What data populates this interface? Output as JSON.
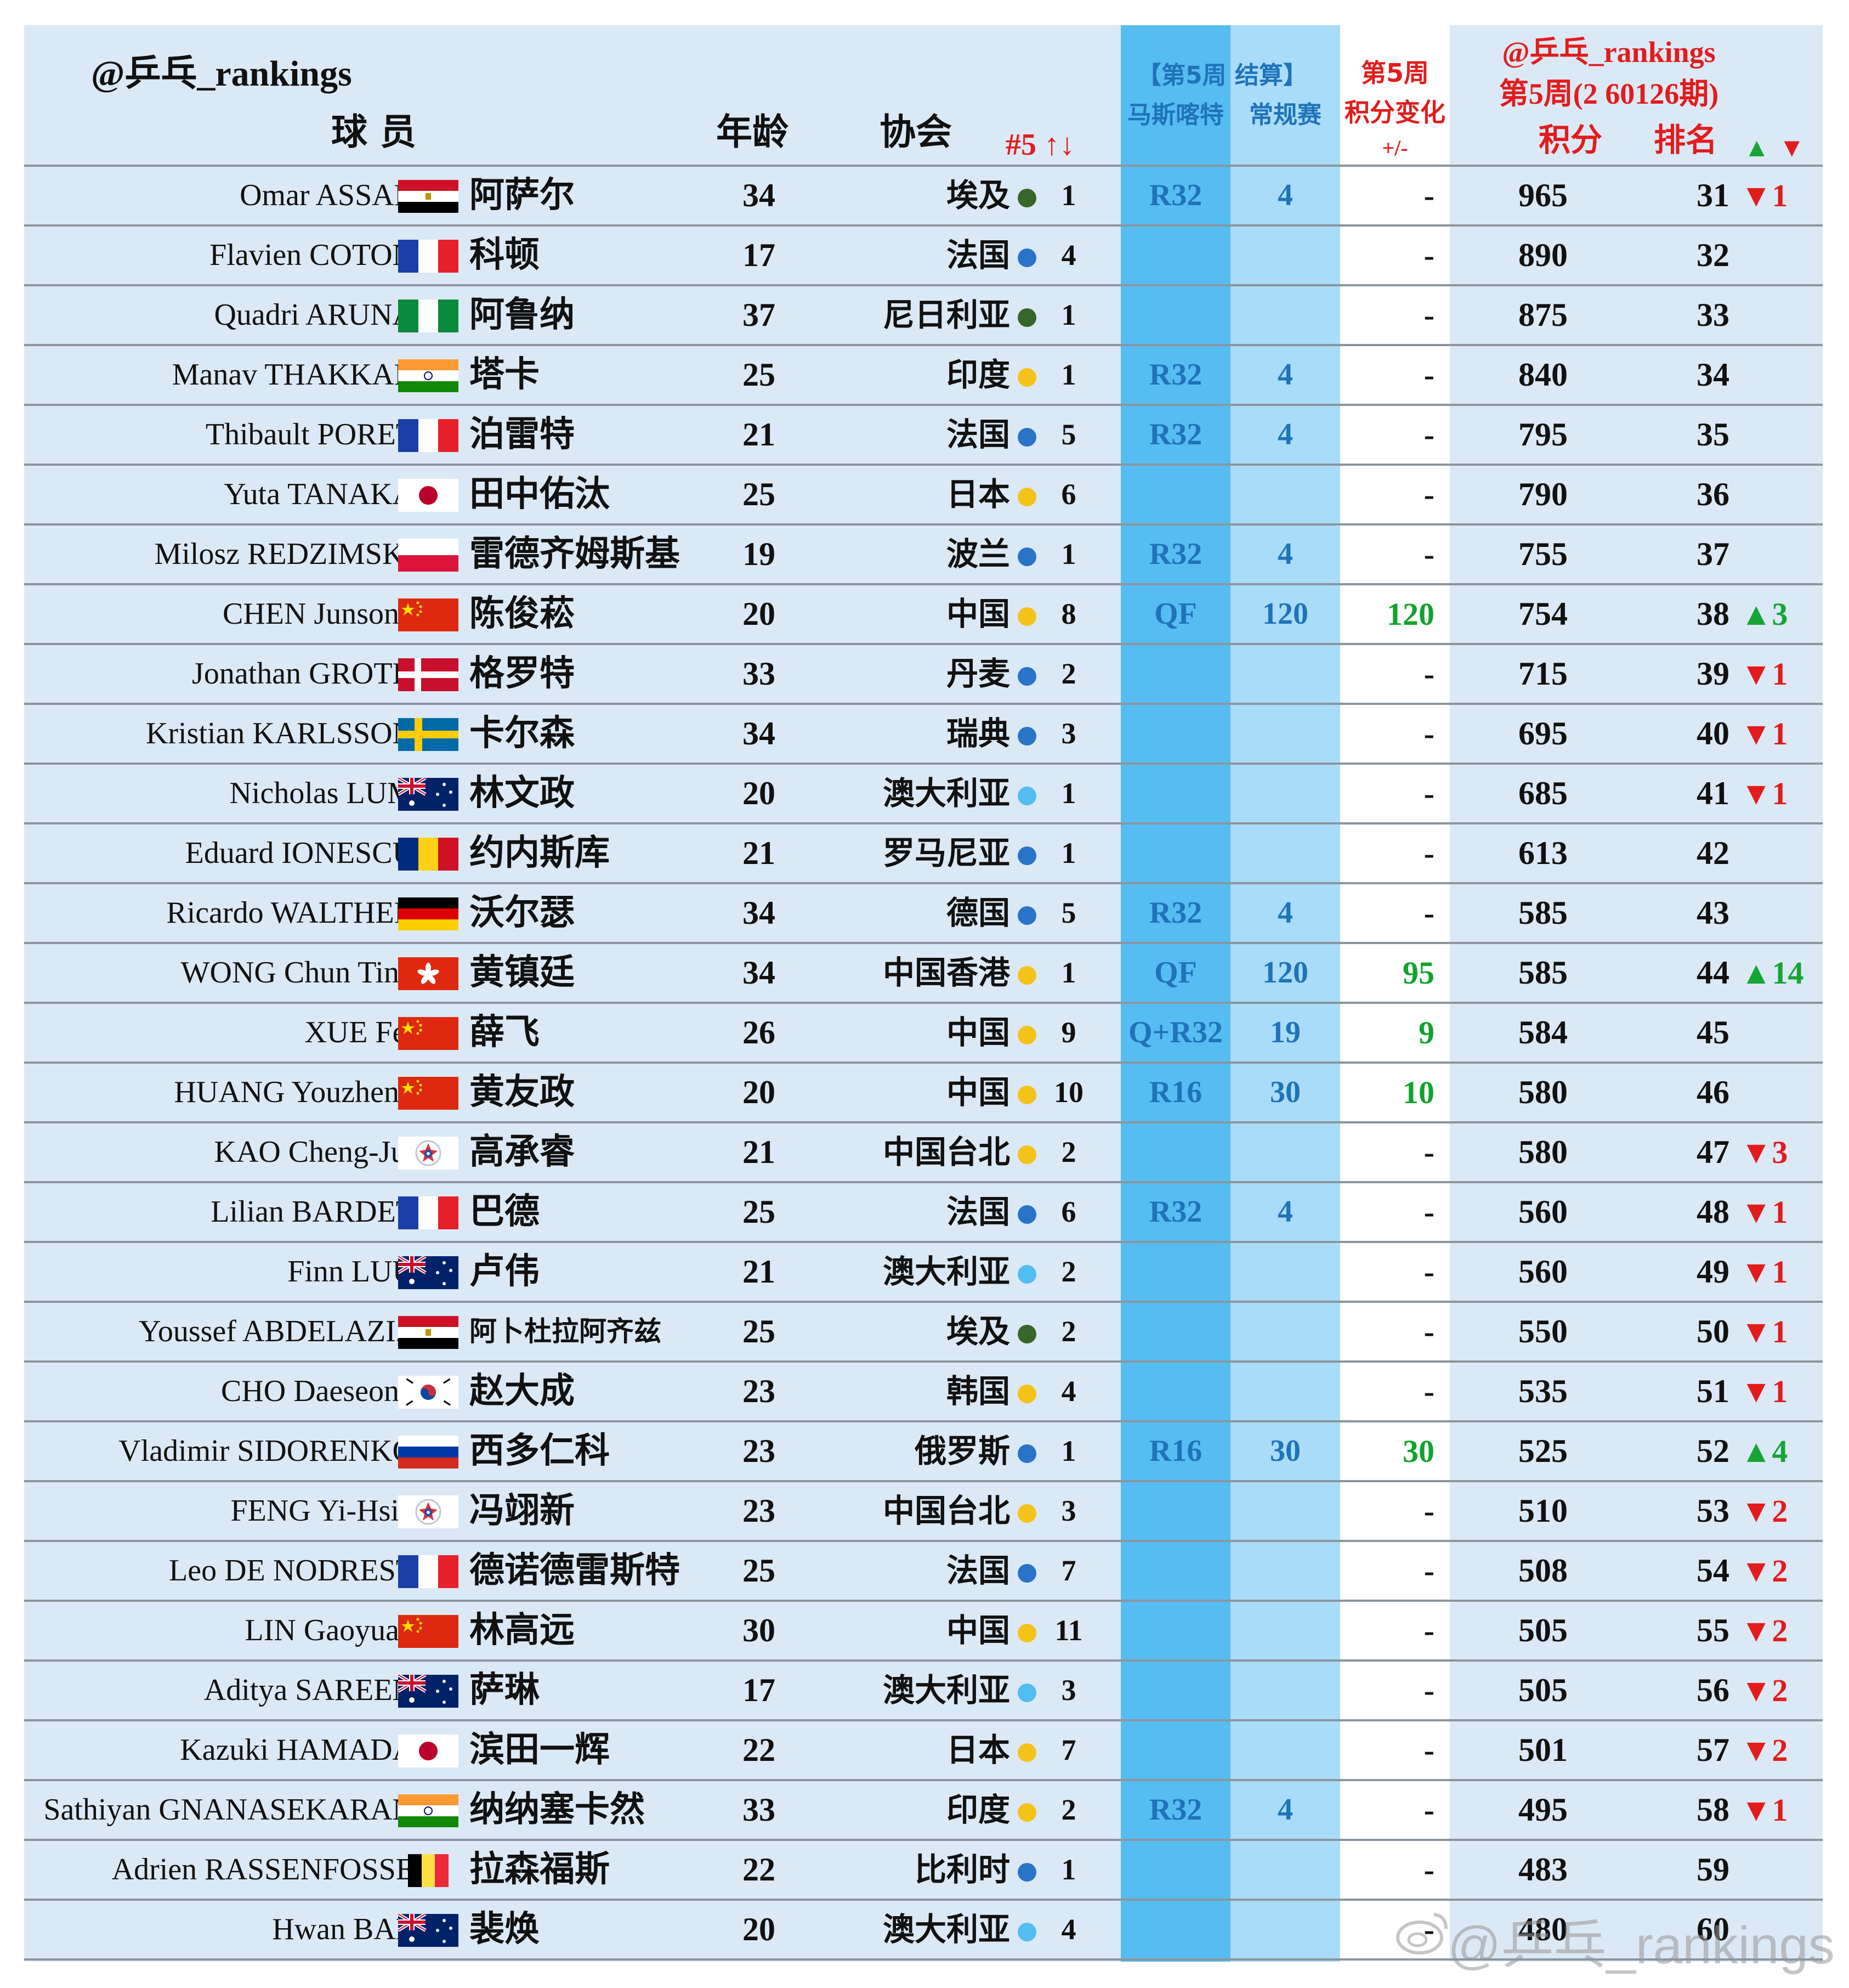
{
  "header": {
    "account": "@乒乓_rankings",
    "col_player": "球 员",
    "col_age": "年龄",
    "col_assoc": "协会",
    "col_assoc_rank": "#5 ↑↓",
    "event_line1": "【第5周 结算】",
    "event_name": "马斯喀特",
    "event_type": "常规赛",
    "change_line1": "第5周",
    "change_line2": "积分变化",
    "change_line3": "+/-",
    "rank_account": "@乒乓_rankings",
    "rank_period": "第5周(2 60126期)",
    "col_points": "积分",
    "col_rank": "排名",
    "up_arrow": "▲",
    "down_arrow": "▼"
  },
  "colors": {
    "table_bg": "#dbe9f6",
    "event_col1": "#55bdf1",
    "event_col2": "#a9dcf8",
    "change_col": "#ffffff",
    "header_red": "#e21c1c",
    "blue_text": "#1f73b9",
    "green_text": "#11a32c",
    "dot_green": "#38652a",
    "dot_blue": "#2a74c8",
    "dot_yellow": "#f4c31a",
    "dot_lightblue": "#52bdf0"
  },
  "rows": [
    {
      "en": "Omar ASSAR",
      "flag": "egypt",
      "cn": "阿萨尔",
      "age": "34",
      "assoc": "埃及",
      "dot": "dot_green",
      "arank": "1",
      "stage": "R32",
      "pts5": "4",
      "chg": "-",
      "points": "965",
      "rank": "31",
      "mv": "▼1",
      "dir": "down"
    },
    {
      "en": "Flavien COTON",
      "flag": "france",
      "cn": "科顿",
      "age": "17",
      "assoc": "法国",
      "dot": "dot_blue",
      "arank": "4",
      "stage": "",
      "pts5": "",
      "chg": "-",
      "points": "890",
      "rank": "32",
      "mv": "",
      "dir": ""
    },
    {
      "en": "Quadri ARUNA",
      "flag": "nigeria",
      "cn": "阿鲁纳",
      "age": "37",
      "assoc": "尼日利亚",
      "dot": "dot_green",
      "arank": "1",
      "stage": "",
      "pts5": "",
      "chg": "-",
      "points": "875",
      "rank": "33",
      "mv": "",
      "dir": ""
    },
    {
      "en": "Manav THAKKAR",
      "flag": "india",
      "cn": "塔卡",
      "age": "25",
      "assoc": "印度",
      "dot": "dot_yellow",
      "arank": "1",
      "stage": "R32",
      "pts5": "4",
      "chg": "-",
      "points": "840",
      "rank": "34",
      "mv": "",
      "dir": ""
    },
    {
      "en": "Thibault PORET",
      "flag": "france",
      "cn": "泊雷特",
      "age": "21",
      "assoc": "法国",
      "dot": "dot_blue",
      "arank": "5",
      "stage": "R32",
      "pts5": "4",
      "chg": "-",
      "points": "795",
      "rank": "35",
      "mv": "",
      "dir": ""
    },
    {
      "en": "Yuta TANAKA",
      "flag": "japan",
      "cn": "田中佑汰",
      "age": "25",
      "assoc": "日本",
      "dot": "dot_yellow",
      "arank": "6",
      "stage": "",
      "pts5": "",
      "chg": "-",
      "points": "790",
      "rank": "36",
      "mv": "",
      "dir": ""
    },
    {
      "en": "Milosz REDZIMSKI",
      "flag": "poland",
      "cn": "雷德齐姆斯基",
      "age": "19",
      "assoc": "波兰",
      "dot": "dot_blue",
      "arank": "1",
      "stage": "R32",
      "pts5": "4",
      "chg": "-",
      "points": "755",
      "rank": "37",
      "mv": "",
      "dir": ""
    },
    {
      "en": "CHEN Junsong",
      "flag": "china",
      "cn": "陈俊菘",
      "age": "20",
      "assoc": "中国",
      "dot": "dot_yellow",
      "arank": "8",
      "stage": "QF",
      "pts5": "120",
      "chg": "120",
      "points": "754",
      "rank": "38",
      "mv": "▲3",
      "dir": "up"
    },
    {
      "en": "Jonathan GROTH",
      "flag": "denmark",
      "cn": "格罗特",
      "age": "33",
      "assoc": "丹麦",
      "dot": "dot_blue",
      "arank": "2",
      "stage": "",
      "pts5": "",
      "chg": "-",
      "points": "715",
      "rank": "39",
      "mv": "▼1",
      "dir": "down"
    },
    {
      "en": "Kristian KARLSSON",
      "flag": "sweden",
      "cn": "卡尔森",
      "age": "34",
      "assoc": "瑞典",
      "dot": "dot_blue",
      "arank": "3",
      "stage": "",
      "pts5": "",
      "chg": "-",
      "points": "695",
      "rank": "40",
      "mv": "▼1",
      "dir": "down"
    },
    {
      "en": "Nicholas LUM",
      "flag": "australia",
      "cn": "林文政",
      "age": "20",
      "assoc": "澳大利亚",
      "dot": "dot_lightblue",
      "arank": "1",
      "stage": "",
      "pts5": "",
      "chg": "-",
      "points": "685",
      "rank": "41",
      "mv": "▼1",
      "dir": "down"
    },
    {
      "en": "Eduard IONESCU",
      "flag": "romania",
      "cn": "约内斯库",
      "age": "21",
      "assoc": "罗马尼亚",
      "dot": "dot_blue",
      "arank": "1",
      "stage": "",
      "pts5": "",
      "chg": "-",
      "points": "613",
      "rank": "42",
      "mv": "",
      "dir": ""
    },
    {
      "en": "Ricardo WALTHER",
      "flag": "germany",
      "cn": "沃尔瑟",
      "age": "34",
      "assoc": "德国",
      "dot": "dot_blue",
      "arank": "5",
      "stage": "R32",
      "pts5": "4",
      "chg": "-",
      "points": "585",
      "rank": "43",
      "mv": "",
      "dir": ""
    },
    {
      "en": "WONG Chun Ting",
      "flag": "hongkong",
      "cn": "黄镇廷",
      "age": "34",
      "assoc": "中国香港",
      "dot": "dot_yellow",
      "arank": "1",
      "stage": "QF",
      "pts5": "120",
      "chg": "95",
      "points": "585",
      "rank": "44",
      "mv": "▲14",
      "dir": "up"
    },
    {
      "en": "XUE Fei",
      "flag": "china",
      "cn": "薛飞",
      "age": "26",
      "assoc": "中国",
      "dot": "dot_yellow",
      "arank": "9",
      "stage": "Q+R32",
      "pts5": "19",
      "chg": "9",
      "points": "584",
      "rank": "45",
      "mv": "",
      "dir": ""
    },
    {
      "en": "HUANG Youzheng",
      "flag": "china",
      "cn": "黄友政",
      "age": "20",
      "assoc": "中国",
      "dot": "dot_yellow",
      "arank": "10",
      "stage": "R16",
      "pts5": "30",
      "chg": "10",
      "points": "580",
      "rank": "46",
      "mv": "",
      "dir": ""
    },
    {
      "en": "KAO Cheng-Jui",
      "flag": "tpe",
      "cn": "高承睿",
      "age": "21",
      "assoc": "中国台北",
      "dot": "dot_yellow",
      "arank": "2",
      "stage": "",
      "pts5": "",
      "chg": "-",
      "points": "580",
      "rank": "47",
      "mv": "▼3",
      "dir": "down"
    },
    {
      "en": "Lilian BARDET",
      "flag": "france",
      "cn": "巴德",
      "age": "25",
      "assoc": "法国",
      "dot": "dot_blue",
      "arank": "6",
      "stage": "R32",
      "pts5": "4",
      "chg": "-",
      "points": "560",
      "rank": "48",
      "mv": "▼1",
      "dir": "down"
    },
    {
      "en": "Finn LUU",
      "flag": "australia",
      "cn": "卢伟",
      "age": "21",
      "assoc": "澳大利亚",
      "dot": "dot_lightblue",
      "arank": "2",
      "stage": "",
      "pts5": "",
      "chg": "-",
      "points": "560",
      "rank": "49",
      "mv": "▼1",
      "dir": "down"
    },
    {
      "en": "Youssef ABDELAZIZ",
      "flag": "egypt",
      "cn": "阿卜杜拉阿齐兹",
      "age": "25",
      "assoc": "埃及",
      "dot": "dot_green",
      "arank": "2",
      "stage": "",
      "pts5": "",
      "chg": "-",
      "points": "550",
      "rank": "50",
      "mv": "▼1",
      "dir": "down"
    },
    {
      "en": "CHO Daeseong",
      "flag": "korea",
      "cn": "赵大成",
      "age": "23",
      "assoc": "韩国",
      "dot": "dot_yellow",
      "arank": "4",
      "stage": "",
      "pts5": "",
      "chg": "-",
      "points": "535",
      "rank": "51",
      "mv": "▼1",
      "dir": "down"
    },
    {
      "en": "Vladimir SIDORENKO",
      "flag": "russia",
      "cn": "西多仁科",
      "age": "23",
      "assoc": "俄罗斯",
      "dot": "dot_blue",
      "arank": "1",
      "stage": "R16",
      "pts5": "30",
      "chg": "30",
      "points": "525",
      "rank": "52",
      "mv": "▲4",
      "dir": "up"
    },
    {
      "en": "FENG Yi-Hsin",
      "flag": "tpe",
      "cn": "冯翊新",
      "age": "23",
      "assoc": "中国台北",
      "dot": "dot_yellow",
      "arank": "3",
      "stage": "",
      "pts5": "",
      "chg": "-",
      "points": "510",
      "rank": "53",
      "mv": "▼2",
      "dir": "down"
    },
    {
      "en": "Leo DE NODREST",
      "flag": "france",
      "cn": "德诺德雷斯特",
      "age": "25",
      "assoc": "法国",
      "dot": "dot_blue",
      "arank": "7",
      "stage": "",
      "pts5": "",
      "chg": "-",
      "points": "508",
      "rank": "54",
      "mv": "▼2",
      "dir": "down"
    },
    {
      "en": "LIN Gaoyuan",
      "flag": "china",
      "cn": "林高远",
      "age": "30",
      "assoc": "中国",
      "dot": "dot_yellow",
      "arank": "11",
      "stage": "",
      "pts5": "",
      "chg": "-",
      "points": "505",
      "rank": "55",
      "mv": "▼2",
      "dir": "down"
    },
    {
      "en": "Aditya SAREEN",
      "flag": "australia",
      "cn": "萨琳",
      "age": "17",
      "assoc": "澳大利亚",
      "dot": "dot_lightblue",
      "arank": "3",
      "stage": "",
      "pts5": "",
      "chg": "-",
      "points": "505",
      "rank": "56",
      "mv": "▼2",
      "dir": "down"
    },
    {
      "en": "Kazuki HAMADA",
      "flag": "japan",
      "cn": "滨田一辉",
      "age": "22",
      "assoc": "日本",
      "dot": "dot_yellow",
      "arank": "7",
      "stage": "",
      "pts5": "",
      "chg": "-",
      "points": "501",
      "rank": "57",
      "mv": "▼2",
      "dir": "down"
    },
    {
      "en": "Sathiyan GNANASEKARAN",
      "flag": "india",
      "cn": "纳纳塞卡然",
      "age": "33",
      "assoc": "印度",
      "dot": "dot_yellow",
      "arank": "2",
      "stage": "R32",
      "pts5": "4",
      "chg": "-",
      "points": "495",
      "rank": "58",
      "mv": "▼1",
      "dir": "down"
    },
    {
      "en": "Adrien RASSENFOSSE",
      "flag": "belgium",
      "cn": "拉森福斯",
      "age": "22",
      "assoc": "比利时",
      "dot": "dot_blue",
      "arank": "1",
      "stage": "",
      "pts5": "",
      "chg": "-",
      "points": "483",
      "rank": "59",
      "mv": "",
      "dir": ""
    },
    {
      "en": "Hwan BAE",
      "flag": "australia",
      "cn": "裴焕",
      "age": "20",
      "assoc": "澳大利亚",
      "dot": "dot_lightblue",
      "arank": "4",
      "stage": "",
      "pts5": "",
      "chg": "-",
      "points": "480",
      "rank": "60",
      "mv": "",
      "dir": ""
    }
  ],
  "watermark": "@乒乓_rankings"
}
